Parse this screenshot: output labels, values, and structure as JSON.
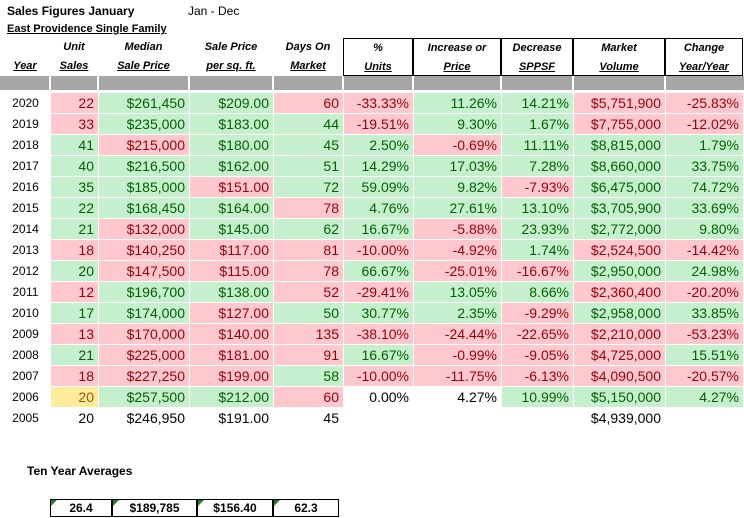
{
  "sheet": {
    "title": "Sales Figures January",
    "range": "Jan - Dec",
    "subtitle": "East Providence Single Family"
  },
  "headers": [
    {
      "line1": "",
      "line2": "Year"
    },
    {
      "line1": "Unit",
      "line2": "Sales"
    },
    {
      "line1": "Median",
      "line2": "Sale Price"
    },
    {
      "line1": "Sale Price",
      "line2": "per sq. ft."
    },
    {
      "line1": "Days On",
      "line2": "Market"
    },
    {
      "line1": "%",
      "line2": "Units"
    },
    {
      "line1": "Increase or",
      "line2": "Price"
    },
    {
      "line1": "Decrease",
      "line2": "SPPSF"
    },
    {
      "line1": "Market",
      "line2": "Volume"
    },
    {
      "line1": "Change",
      "line2": "Year/Year"
    }
  ],
  "rows": [
    {
      "cells": [
        "2020",
        "22",
        "$261,450",
        "$209.00",
        "60",
        "-33.33%",
        "11.26%",
        "14.21%",
        "$5,751,900",
        "-25.83%"
      ],
      "colors": [
        "n",
        "r",
        "g",
        "g",
        "r",
        "r",
        "g",
        "g",
        "r",
        "r"
      ]
    },
    {
      "cells": [
        "2019",
        "33",
        "$235,000",
        "$183.00",
        "44",
        "-19.51%",
        "9.30%",
        "1.67%",
        "$7,755,000",
        "-12.02%"
      ],
      "colors": [
        "n",
        "r",
        "g",
        "g",
        "g",
        "r",
        "g",
        "g",
        "r",
        "r"
      ]
    },
    {
      "cells": [
        "2018",
        "41",
        "$215,000",
        "$180.00",
        "45",
        "2.50%",
        "-0.69%",
        "11.11%",
        "$8,815,000",
        "1.79%"
      ],
      "colors": [
        "n",
        "g",
        "r",
        "g",
        "g",
        "g",
        "r",
        "g",
        "g",
        "g"
      ]
    },
    {
      "cells": [
        "2017",
        "40",
        "$216,500",
        "$162.00",
        "51",
        "14.29%",
        "17.03%",
        "7.28%",
        "$8,660,000",
        "33.75%"
      ],
      "colors": [
        "n",
        "g",
        "g",
        "g",
        "g",
        "g",
        "g",
        "g",
        "g",
        "g"
      ]
    },
    {
      "cells": [
        "2016",
        "35",
        "$185,000",
        "$151.00",
        "72",
        "59.09%",
        "9.82%",
        "-7.93%",
        "$6,475,000",
        "74.72%"
      ],
      "colors": [
        "n",
        "g",
        "g",
        "r",
        "g",
        "g",
        "g",
        "r",
        "g",
        "g"
      ]
    },
    {
      "cells": [
        "2015",
        "22",
        "$168,450",
        "$164.00",
        "78",
        "4.76%",
        "27.61%",
        "13.10%",
        "$3,705,900",
        "33.69%"
      ],
      "colors": [
        "n",
        "g",
        "g",
        "g",
        "r",
        "g",
        "g",
        "g",
        "g",
        "g"
      ]
    },
    {
      "cells": [
        "2014",
        "21",
        "$132,000",
        "$145.00",
        "62",
        "16.67%",
        "-5.88%",
        "23.93%",
        "$2,772,000",
        "9.80%"
      ],
      "colors": [
        "n",
        "g",
        "r",
        "g",
        "g",
        "g",
        "r",
        "g",
        "g",
        "g"
      ]
    },
    {
      "cells": [
        "2013",
        "18",
        "$140,250",
        "$117.00",
        "81",
        "-10.00%",
        "-4.92%",
        "1.74%",
        "$2,524,500",
        "-14.42%"
      ],
      "colors": [
        "n",
        "r",
        "r",
        "r",
        "r",
        "r",
        "r",
        "g",
        "r",
        "r"
      ]
    },
    {
      "cells": [
        "2012",
        "20",
        "$147,500",
        "$115.00",
        "78",
        "66.67%",
        "-25.01%",
        "-16.67%",
        "$2,950,000",
        "24.98%"
      ],
      "colors": [
        "n",
        "g",
        "r",
        "r",
        "r",
        "g",
        "r",
        "r",
        "g",
        "g"
      ]
    },
    {
      "cells": [
        "2011",
        "12",
        "$196,700",
        "$138.00",
        "52",
        "-29.41%",
        "13.05%",
        "8.66%",
        "$2,360,400",
        "-20.20%"
      ],
      "colors": [
        "n",
        "r",
        "g",
        "g",
        "r",
        "r",
        "g",
        "g",
        "r",
        "r"
      ]
    },
    {
      "cells": [
        "2010",
        "17",
        "$174,000",
        "$127.00",
        "50",
        "30.77%",
        "2.35%",
        "-9.29%",
        "$2,958,000",
        "33.85%"
      ],
      "colors": [
        "n",
        "g",
        "g",
        "r",
        "g",
        "g",
        "g",
        "r",
        "g",
        "g"
      ]
    },
    {
      "cells": [
        "2009",
        "13",
        "$170,000",
        "$140.00",
        "135",
        "-38.10%",
        "-24.44%",
        "-22.65%",
        "$2,210,000",
        "-53.23%"
      ],
      "colors": [
        "n",
        "r",
        "r",
        "r",
        "r",
        "r",
        "r",
        "r",
        "r",
        "r"
      ]
    },
    {
      "cells": [
        "2008",
        "21",
        "$225,000",
        "$181.00",
        "91",
        "16.67%",
        "-0.99%",
        "-9.05%",
        "$4,725,000",
        "15.51%"
      ],
      "colors": [
        "n",
        "g",
        "r",
        "r",
        "r",
        "g",
        "r",
        "r",
        "r",
        "g"
      ]
    },
    {
      "cells": [
        "2007",
        "18",
        "$227,250",
        "$199.00",
        "58",
        "-10.00%",
        "-11.75%",
        "-6.13%",
        "$4,090,500",
        "-20.57%"
      ],
      "colors": [
        "n",
        "r",
        "r",
        "r",
        "g",
        "r",
        "r",
        "r",
        "r",
        "r"
      ]
    },
    {
      "cells": [
        "2006",
        "20",
        "$257,500",
        "$212.00",
        "60",
        "0.00%",
        "4.27%",
        "10.99%",
        "$5,150,000",
        "4.27%"
      ],
      "colors": [
        "n",
        "y",
        "g",
        "g",
        "r",
        "n",
        "n",
        "g",
        "g",
        "g"
      ]
    },
    {
      "cells": [
        "2005",
        "20",
        "$246,950",
        "$191.00",
        "45",
        "",
        "",
        "",
        "$4,939,000",
        ""
      ],
      "colors": [
        "n",
        "n",
        "n",
        "n",
        "n",
        "n",
        "n",
        "n",
        "n",
        "n"
      ]
    }
  ],
  "averages": {
    "label": "Ten Year Averages",
    "values": [
      "26.4",
      "$189,785",
      "$156.40",
      "62.3"
    ]
  },
  "colors": {
    "good_fill": "#c6efce",
    "good_text": "#006100",
    "bad_fill": "#ffc7ce",
    "bad_text": "#9c0006",
    "neutral_fill": "#ffeb9c",
    "neutral_text": "#9c5700",
    "header_band": "#a6a6a6"
  }
}
